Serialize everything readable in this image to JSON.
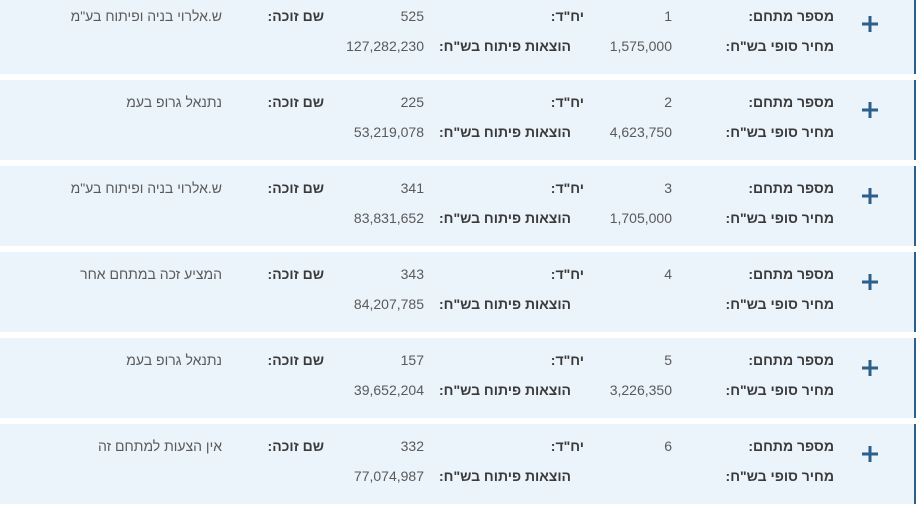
{
  "labels": {
    "plot_number": "מספר מתחם:",
    "units": "יח\"ד:",
    "winner_name": "שם זוכה:",
    "final_price": "מחיר סופי בש\"ח:",
    "dev_costs": "הוצאות פיתוח בש\"ח:"
  },
  "icons": {
    "expand": "plus-icon"
  },
  "colors": {
    "card_bg": "#ebf3fb",
    "accent": "#2c5f8a"
  },
  "rows": [
    {
      "plot_number": "1",
      "units": "525",
      "winner_name": "ש.אלרוי בניה ופיתוח בע\"מ",
      "final_price": "1,575,000",
      "dev_costs": "127,282,230"
    },
    {
      "plot_number": "2",
      "units": "225",
      "winner_name": "נתנאל גרופ בעמ",
      "final_price": "4,623,750",
      "dev_costs": "53,219,078"
    },
    {
      "plot_number": "3",
      "units": "341",
      "winner_name": "ש.אלרוי בניה ופיתוח בע\"מ",
      "final_price": "1,705,000",
      "dev_costs": "83,831,652"
    },
    {
      "plot_number": "4",
      "units": "343",
      "winner_name": "המציע זכה במתחם אחר",
      "final_price": "",
      "dev_costs": "84,207,785"
    },
    {
      "plot_number": "5",
      "units": "157",
      "winner_name": "נתנאל גרופ בעמ",
      "final_price": "3,226,350",
      "dev_costs": "39,652,204"
    },
    {
      "plot_number": "6",
      "units": "332",
      "winner_name": "אין הצעות למתחם זה",
      "final_price": "",
      "dev_costs": "77,074,987"
    }
  ]
}
